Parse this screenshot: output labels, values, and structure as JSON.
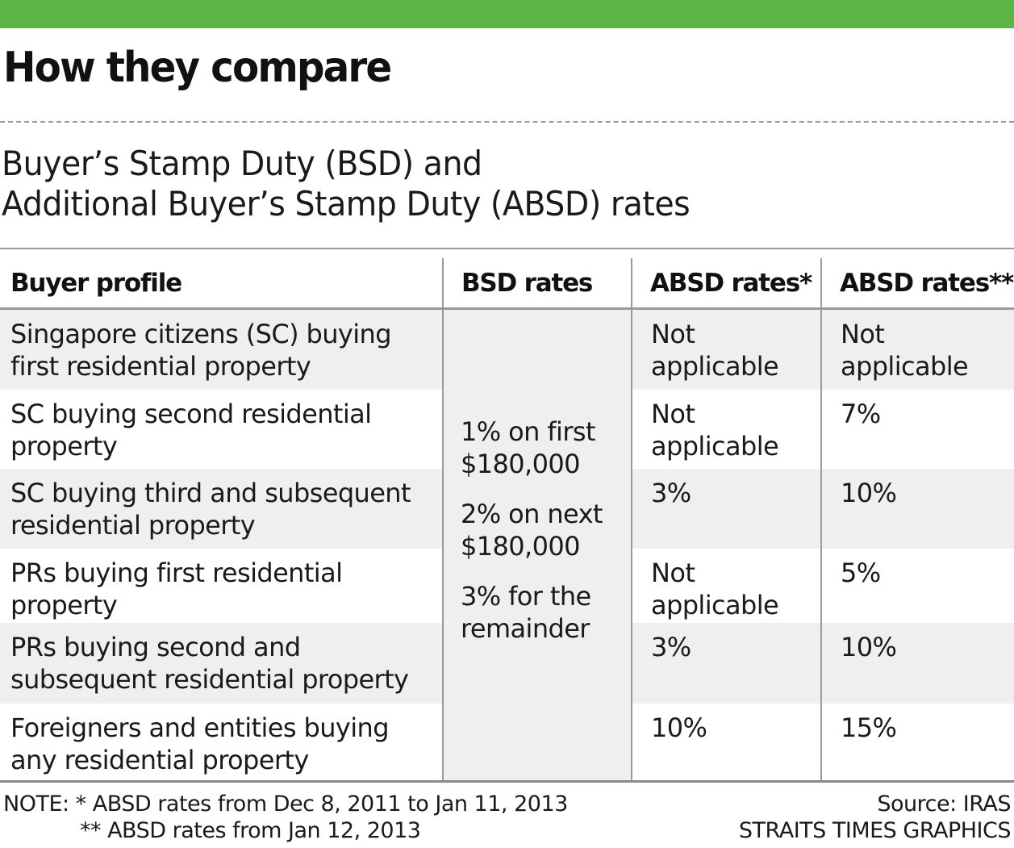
{
  "accent_color": "#5bb645",
  "header_title": "How they compare",
  "subtitle_lines": [
    "Buyer’s Stamp Duty (BSD) and",
    "Additional Buyer’s Stamp Duty (ABSD) rates"
  ],
  "chart_data": {
    "type": "table",
    "columns": [
      "Buyer profile",
      "BSD rates",
      "ABSD rates*",
      "ABSD rates**"
    ],
    "rows": [
      {
        "profile": [
          "Singapore citizens (SC) buying",
          "first residential property"
        ],
        "absd_2011": [
          "Not",
          "applicable"
        ],
        "absd_2013": [
          "Not",
          "applicable"
        ]
      },
      {
        "profile": [
          "SC buying second residential",
          "property"
        ],
        "absd_2011": [
          "Not",
          "applicable"
        ],
        "absd_2013": [
          "7%"
        ]
      },
      {
        "profile": [
          "SC buying third and subsequent",
          "residential property"
        ],
        "absd_2011": [
          "3%"
        ],
        "absd_2013": [
          "10%"
        ]
      },
      {
        "profile": [
          "PRs buying first residential",
          "property"
        ],
        "absd_2011": [
          "Not",
          "applicable"
        ],
        "absd_2013": [
          "5%"
        ]
      },
      {
        "profile": [
          "PRs buying second and",
          "subsequent residential property"
        ],
        "absd_2011": [
          "3%"
        ],
        "absd_2013": [
          "10%"
        ]
      },
      {
        "profile": [
          "Foreigners and entities buying",
          "any residential property"
        ],
        "absd_2011": [
          "10%"
        ],
        "absd_2013": [
          "15%"
        ]
      }
    ],
    "bsd_rates": [
      [
        "1% on first",
        "$180,000"
      ],
      [
        "2% on next",
        "$180,000"
      ],
      [
        "3% for the",
        "remainder"
      ]
    ]
  },
  "footer": {
    "note_lines": [
      "NOTE: * ABSD rates from Dec 8, 2011 to Jan 11, 2013",
      "** ABSD rates from Jan 12, 2013"
    ],
    "source": "Source: IRAS",
    "credit": "STRAITS TIMES GRAPHICS"
  }
}
